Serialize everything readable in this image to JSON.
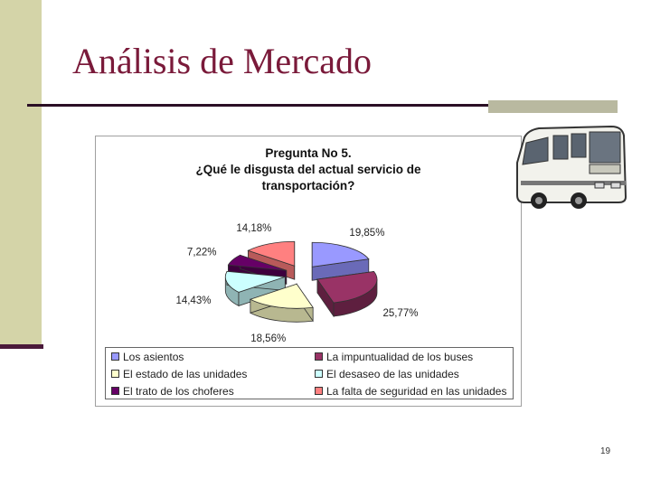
{
  "slide": {
    "title": "Análisis de Mercado",
    "page_number": "19"
  },
  "chart_data": {
    "type": "pie",
    "title_lines": [
      "Pregunta No 5.",
      "¿Qué le disgusta del actual servicio de",
      "transportación?"
    ],
    "slices": [
      {
        "label": "Los asientos",
        "value": 19.85,
        "display": "19,85%",
        "color": "#9999ff",
        "side": "#6a6ab8"
      },
      {
        "label": "La impuntualidad de los buses",
        "value": 25.77,
        "display": "25,77%",
        "color": "#993366",
        "side": "#5e1f3f"
      },
      {
        "label": "El estado de las unidades",
        "value": 18.56,
        "display": "18,56%",
        "color": "#ffffcc",
        "side": "#b8b890"
      },
      {
        "label": "El desaseo de las unidades",
        "value": 14.43,
        "display": "14,43%",
        "color": "#ccffff",
        "side": "#8fb4b4"
      },
      {
        "label": "El trato de los choferes",
        "value": 7.22,
        "display": "7,22%",
        "color": "#660066",
        "side": "#3d003d"
      },
      {
        "label": "La falta de seguridad en las unidades",
        "value": 14.18,
        "display": "14,18%",
        "color": "#ff8080",
        "side": "#b85a5a"
      }
    ]
  }
}
